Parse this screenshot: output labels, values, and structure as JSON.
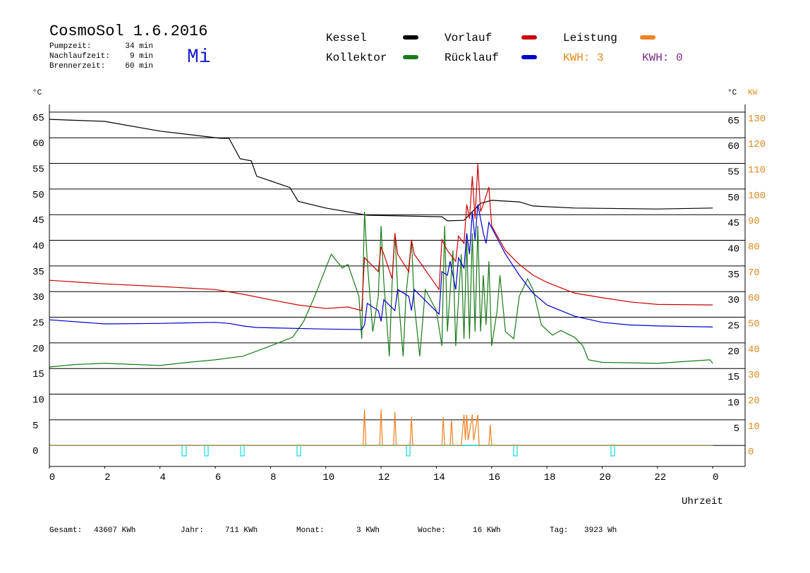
{
  "chart_data": {
    "type": "line",
    "title": "CosmoSol 1.6.2016",
    "weekday": "Mi",
    "info": [
      {
        "label": "Pumpzeit:",
        "value": "34 min"
      },
      {
        "label": "Nachlaufzeit:",
        "value": "9 min"
      },
      {
        "label": "Brennerzeit:",
        "value": "60 min"
      }
    ],
    "y_label": "°C",
    "y2_label": "KW",
    "x_label": "Uhrzeit",
    "xlim": [
      0,
      25.17
    ],
    "xticks": [
      0,
      2,
      4,
      6,
      8,
      10,
      12,
      14,
      16,
      18,
      20,
      22,
      {
        "value": 24,
        "label": "0"
      }
    ],
    "ylim": [
      -4.1,
      66.5
    ],
    "yticks": [
      0,
      5,
      10,
      15,
      20,
      25,
      30,
      35,
      40,
      45,
      50,
      55,
      60,
      65
    ],
    "y2lim": [
      -8.2,
      133
    ],
    "y2ticks": [
      0,
      10,
      20,
      30,
      40,
      50,
      60,
      70,
      80,
      90,
      100,
      110,
      120,
      130
    ],
    "grid": true,
    "series": [
      {
        "name": "Kessel",
        "color": "#000000",
        "x": [
          0,
          2,
          4,
          6.2,
          6.5,
          6.9,
          7.3,
          7.5,
          8.7,
          9,
          10,
          11.5,
          14.2,
          14.4,
          15,
          15.3,
          15.6,
          16,
          17,
          17.5,
          19,
          22,
          24
        ],
        "values": [
          63.6,
          63.2,
          61.3,
          59.9,
          59.9,
          55.9,
          55.5,
          52.5,
          50.3,
          47.6,
          46.3,
          44.9,
          44.6,
          43.8,
          43.9,
          45.6,
          47.2,
          47.8,
          47.5,
          46.7,
          46.3,
          46.1,
          46.3
        ]
      },
      {
        "name": "Vorlauf",
        "color": "#cc0000",
        "x": [
          0,
          2,
          4,
          6,
          7,
          8,
          9,
          10,
          10.8,
          11.3,
          11.4,
          11.9,
          12.0,
          12.1,
          12.4,
          12.5,
          12.6,
          13.0,
          13.1,
          13.2,
          14.1,
          14.2,
          14.4,
          14.7,
          14.8,
          15.0,
          15.1,
          15.2,
          15.3,
          15.4,
          15.5,
          15.6,
          15.7,
          15.9,
          16.0,
          16.5,
          17,
          17.5,
          18,
          19,
          20,
          21,
          22,
          24
        ],
        "values": [
          32.2,
          31.5,
          31.0,
          30.4,
          29.5,
          28.4,
          27.4,
          26.7,
          27.0,
          26.3,
          36.6,
          33.9,
          38.7,
          37.3,
          32.5,
          41.4,
          37.3,
          33.9,
          40.1,
          37.3,
          30.4,
          40.1,
          38.0,
          35.9,
          40.8,
          39.4,
          47.0,
          44.2,
          52.5,
          44.2,
          54.9,
          45.6,
          47.0,
          50.4,
          42.8,
          38.0,
          35.3,
          33.2,
          31.8,
          29.7,
          28.8,
          28.0,
          27.5,
          27.4
        ]
      },
      {
        "name": "Leistung",
        "color": "#f08020",
        "axis": "y2",
        "x": [
          0,
          11.35,
          11.4,
          11.45,
          11.95,
          12.0,
          12.05,
          12.45,
          12.5,
          12.55,
          13.05,
          13.1,
          13.15,
          14.2,
          14.25,
          14.3,
          14.5,
          14.55,
          14.6,
          14.9,
          15.0,
          15.05,
          15.1,
          15.15,
          15.3,
          15.35,
          15.5,
          15.55,
          15.9,
          15.95,
          16.0,
          24
        ],
        "values": [
          0,
          0,
          14,
          0,
          0,
          14,
          0,
          0,
          13,
          0,
          0,
          11,
          0,
          0,
          11,
          0,
          0,
          10,
          0,
          0,
          12,
          2,
          12,
          2,
          12,
          2,
          12,
          0,
          0,
          8,
          0,
          0
        ]
      },
      {
        "name": "Kollektor",
        "color": "#1a7a1a",
        "x": [
          0,
          1,
          2,
          3,
          4,
          5,
          6,
          7,
          8,
          8.8,
          9.2,
          9.6,
          10,
          10.2,
          10.4,
          10.6,
          10.8,
          11.2,
          11.3,
          11.4,
          11.5,
          11.7,
          11.9,
          12.0,
          12.1,
          12.3,
          12.4,
          12.5,
          12.6,
          12.8,
          12.9,
          13.1,
          13.2,
          13.4,
          13.6,
          14,
          14.2,
          14.3,
          14.4,
          14.6,
          14.7,
          14.9,
          15.0,
          15.1,
          15.2,
          15.3,
          15.4,
          15.5,
          15.6,
          15.7,
          15.8,
          15.9,
          16.0,
          16.2,
          16.3,
          16.5,
          16.8,
          17.0,
          17.3,
          17.5,
          17.8,
          18.2,
          18.5,
          19,
          19.3,
          19.5,
          20,
          22,
          23.9,
          24
        ],
        "values": [
          15.3,
          15.8,
          16.0,
          15.8,
          15.6,
          16.2,
          16.7,
          17.4,
          19.4,
          21.1,
          24.2,
          29.1,
          34.6,
          37.3,
          35.9,
          34.6,
          35.3,
          29.1,
          20.8,
          45.6,
          35.9,
          22.2,
          29.1,
          42.8,
          31.8,
          17.4,
          31.8,
          41.4,
          30.4,
          17.4,
          29.1,
          40.1,
          27.7,
          17.4,
          30.4,
          26.3,
          19.4,
          42.8,
          22.2,
          38.0,
          19.4,
          37.3,
          20.8,
          40.1,
          20.8,
          41.4,
          22.2,
          42.8,
          22.2,
          33.2,
          23.5,
          35.9,
          19.4,
          26.3,
          33.2,
          22.2,
          20.8,
          29.1,
          32.5,
          30.4,
          23.5,
          21.5,
          22.4,
          21.1,
          19.4,
          16.7,
          16.2,
          16.0,
          16.7,
          16.0
        ]
      },
      {
        "name": "Rücklauf",
        "color": "#0000cc",
        "x": [
          0,
          2,
          4,
          6,
          6.5,
          7,
          7.5,
          10,
          11.3,
          11.4,
          11.5,
          11.9,
          12.0,
          12.1,
          12.5,
          12.6,
          13.0,
          13.1,
          13.2,
          14.1,
          14.2,
          14.4,
          14.5,
          14.7,
          14.8,
          15.0,
          15.1,
          15.2,
          15.3,
          15.4,
          15.5,
          15.7,
          15.8,
          15.9,
          16.5,
          17,
          17.5,
          18,
          19,
          20,
          21,
          22,
          24
        ],
        "values": [
          24.5,
          23.7,
          23.8,
          24.0,
          23.8,
          23.3,
          23.0,
          22.7,
          22.6,
          23.5,
          27.7,
          26.3,
          24.2,
          28.4,
          26.3,
          30.4,
          29.1,
          26.3,
          30.4,
          25.6,
          33.9,
          33.2,
          35.9,
          30.4,
          36.6,
          34.6,
          41.4,
          37.3,
          45.6,
          40.1,
          47.0,
          41.4,
          39.4,
          43.5,
          37.3,
          33.2,
          29.7,
          27.4,
          25.2,
          24.0,
          23.5,
          23.3,
          23.1
        ]
      }
    ],
    "legend_notes": [
      {
        "label": "KWH: 3",
        "color": "#e08a1e"
      },
      {
        "label": "KWH: 0",
        "color": "#7a2a8a"
      }
    ],
    "footer": [
      {
        "label": "Gesamt:",
        "value": "43607 KWh"
      },
      {
        "label": "Jahr:",
        "value": "711 KWh"
      },
      {
        "label": "Monat:",
        "value": "3 KWh"
      },
      {
        "label": "Woche:",
        "value": "16 KWh"
      },
      {
        "label": "Tag:",
        "value": "3923 Wh"
      }
    ]
  }
}
